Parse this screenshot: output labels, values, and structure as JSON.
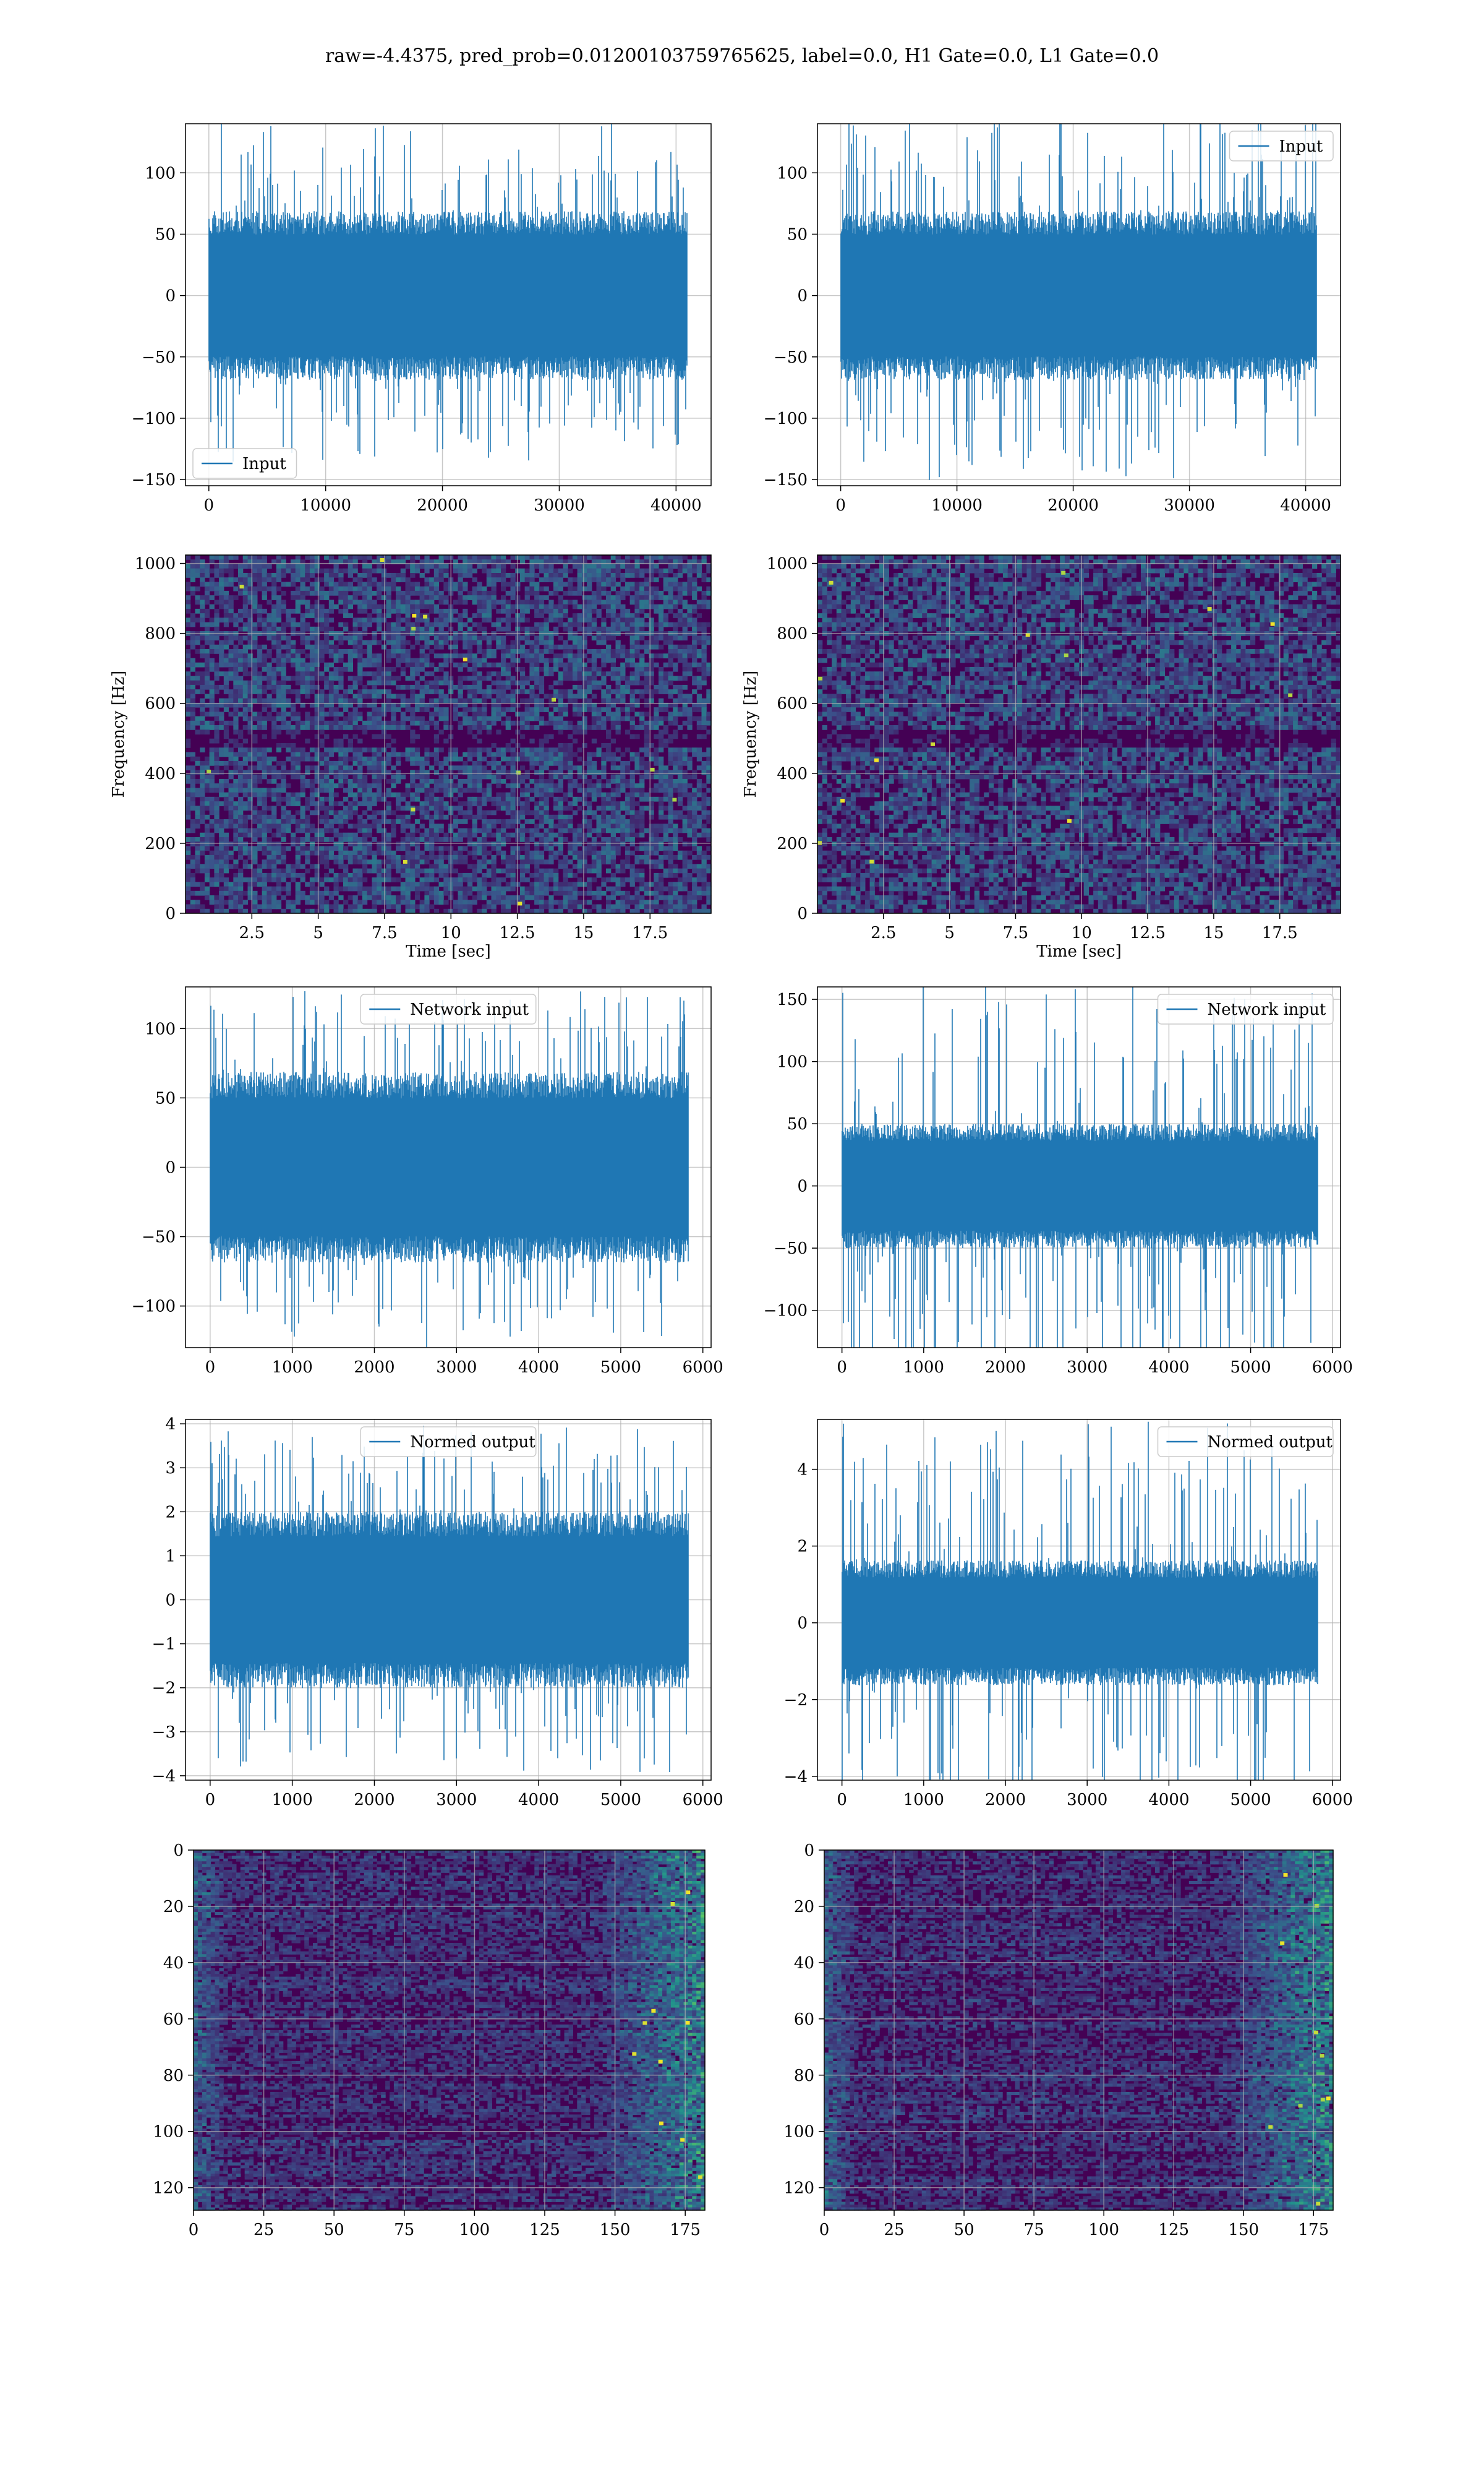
{
  "figure": {
    "title": "raw=-4.4375, pred_prob=0.01200103759765625, label=0.0, H1 Gate=0.0, L1 Gate=0.0"
  },
  "colors": {
    "series": "#1f77b4",
    "grid": "#b0b0b0",
    "viridis_dark": "#440154",
    "viridis_mid": "#21918c",
    "viridis_bright": "#fde725"
  },
  "chart_data": [
    {
      "id": "r1c1",
      "type": "line",
      "legend": "Input",
      "legend_loc": "lower left",
      "xlim": [
        -2000,
        43000
      ],
      "ylim": [
        -155,
        140
      ],
      "xticks": [
        0,
        10000,
        20000,
        30000,
        40000
      ],
      "yticks": [
        -150,
        -100,
        -50,
        0,
        50,
        100
      ],
      "n": 40960,
      "band": 55,
      "spike": 130,
      "grid": true
    },
    {
      "id": "r1c2",
      "type": "line",
      "legend": "Input",
      "legend_loc": "upper right",
      "xlim": [
        -2000,
        43000
      ],
      "ylim": [
        -155,
        140
      ],
      "xticks": [
        0,
        10000,
        20000,
        30000,
        40000
      ],
      "yticks": [
        -150,
        -100,
        -50,
        0,
        50,
        100
      ],
      "n": 40960,
      "band": 55,
      "spike": 145,
      "grid": true
    },
    {
      "id": "r2c1",
      "type": "heatmap",
      "xlabel": "Time [sec]",
      "ylabel": "Frequency [Hz]",
      "xlim": [
        0,
        19.8
      ],
      "ylim": [
        0,
        1024
      ],
      "xticks": [
        2.5,
        5.0,
        7.5,
        10.0,
        12.5,
        15.0,
        17.5
      ],
      "yticks": [
        0,
        200,
        400,
        600,
        800,
        1000
      ],
      "grid": true
    },
    {
      "id": "r2c2",
      "type": "heatmap",
      "xlabel": "Time [sec]",
      "ylabel": "Frequency [Hz]",
      "xlim": [
        0,
        19.8
      ],
      "ylim": [
        0,
        1024
      ],
      "xticks": [
        2.5,
        5.0,
        7.5,
        10.0,
        12.5,
        15.0,
        17.5
      ],
      "yticks": [
        0,
        200,
        400,
        600,
        800,
        1000
      ],
      "grid": true
    },
    {
      "id": "r3c1",
      "type": "line",
      "legend": "Network input",
      "legend_loc": "upper center",
      "xlim": [
        -300,
        6100
      ],
      "ylim": [
        -130,
        130
      ],
      "xticks": [
        0,
        1000,
        2000,
        3000,
        4000,
        5000,
        6000
      ],
      "yticks": [
        -100,
        -50,
        0,
        50,
        100
      ],
      "n": 5824,
      "band": 55,
      "spike": 120,
      "grid": true
    },
    {
      "id": "r3c2",
      "type": "line",
      "legend": "Network input",
      "legend_loc": "upper right",
      "xlim": [
        -300,
        6100
      ],
      "ylim": [
        -130,
        160
      ],
      "xticks": [
        0,
        1000,
        2000,
        3000,
        4000,
        5000,
        6000
      ],
      "yticks": [
        -100,
        -50,
        0,
        50,
        100,
        150
      ],
      "n": 5824,
      "band": 40,
      "spike": 160,
      "grid": true
    },
    {
      "id": "r4c1",
      "type": "line",
      "legend": "Normed output",
      "legend_loc": "upper center",
      "xlim": [
        -300,
        6100
      ],
      "ylim": [
        -4.1,
        4.1
      ],
      "xticks": [
        0,
        1000,
        2000,
        3000,
        4000,
        5000,
        6000
      ],
      "yticks": [
        -4,
        -3,
        -2,
        -1,
        0,
        1,
        2,
        3,
        4
      ],
      "n": 5824,
      "band": 1.6,
      "spike": 3.7,
      "grid": true
    },
    {
      "id": "r4c2",
      "type": "line",
      "legend": "Normed output",
      "legend_loc": "upper right",
      "xlim": [
        -300,
        6100
      ],
      "ylim": [
        -4.1,
        5.3
      ],
      "xticks": [
        0,
        1000,
        2000,
        3000,
        4000,
        5000,
        6000
      ],
      "yticks": [
        -4,
        -2,
        0,
        2,
        4
      ],
      "n": 5824,
      "band": 1.3,
      "spike": 5.0,
      "grid": true
    },
    {
      "id": "r5c1",
      "type": "heatmap",
      "orientation": "image",
      "xlim": [
        0,
        182
      ],
      "ylim": [
        128,
        0
      ],
      "xticks": [
        0,
        25,
        50,
        75,
        100,
        125,
        150,
        175
      ],
      "yticks": [
        0,
        20,
        40,
        60,
        80,
        100,
        120
      ],
      "grid": true
    },
    {
      "id": "r5c2",
      "type": "heatmap",
      "orientation": "image",
      "xlim": [
        0,
        182
      ],
      "ylim": [
        128,
        0
      ],
      "xticks": [
        0,
        25,
        50,
        75,
        100,
        125,
        150,
        175
      ],
      "yticks": [
        0,
        20,
        40,
        60,
        80,
        100,
        120
      ],
      "grid": true
    }
  ]
}
